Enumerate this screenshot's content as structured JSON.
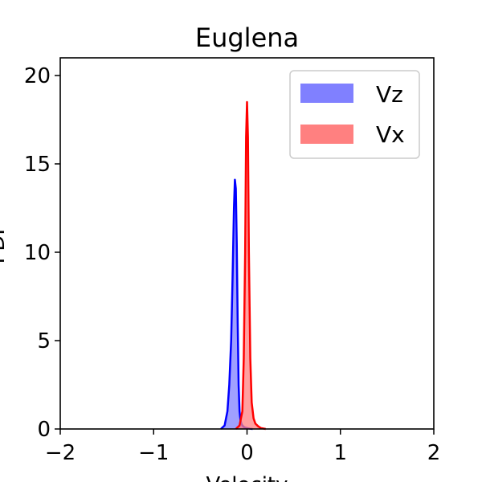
{
  "chart_data": {
    "type": "area",
    "title": "Euglena",
    "xlabel": "Velocity",
    "ylabel": "PDF",
    "xlim": [
      -2,
      2
    ],
    "ylim": [
      0,
      21
    ],
    "xticks": [
      "−2",
      "−1",
      "0",
      "1",
      "2"
    ],
    "xtick_values": [
      -2,
      -1,
      0,
      1,
      2
    ],
    "yticks": [
      "0",
      "5",
      "10",
      "15",
      "20"
    ],
    "ytick_values": [
      0,
      5,
      10,
      15,
      20
    ],
    "grid": false,
    "legend_position": "top-right",
    "series": [
      {
        "name": "Vz",
        "color": "#0000ff",
        "fill_color": "#8080ff",
        "x": [
          -0.28,
          -0.24,
          -0.21,
          -0.19,
          -0.17,
          -0.155,
          -0.14,
          -0.13,
          -0.12,
          -0.11,
          -0.1,
          -0.09,
          -0.08,
          -0.07,
          -0.06,
          -0.05,
          -0.03,
          0.0,
          0.03,
          0.06
        ],
        "y": [
          0,
          0.2,
          1.0,
          2.5,
          5.0,
          8.5,
          12.5,
          14.1,
          13.6,
          10.5,
          6.0,
          2.5,
          1.0,
          0.5,
          0.3,
          0.2,
          0.1,
          0.05,
          0.02,
          0
        ]
      },
      {
        "name": "Vx",
        "color": "#ff0000",
        "fill_color": "#ff8080",
        "x": [
          -0.12,
          -0.08,
          -0.05,
          -0.035,
          -0.02,
          -0.01,
          0.0,
          0.01,
          0.02,
          0.035,
          0.05,
          0.07,
          0.09,
          0.12,
          0.15,
          0.2
        ],
        "y": [
          0,
          0.2,
          1.0,
          4.0,
          10.0,
          16.5,
          18.5,
          16.5,
          10.0,
          4.0,
          1.5,
          0.6,
          0.3,
          0.15,
          0.05,
          0
        ]
      }
    ]
  }
}
